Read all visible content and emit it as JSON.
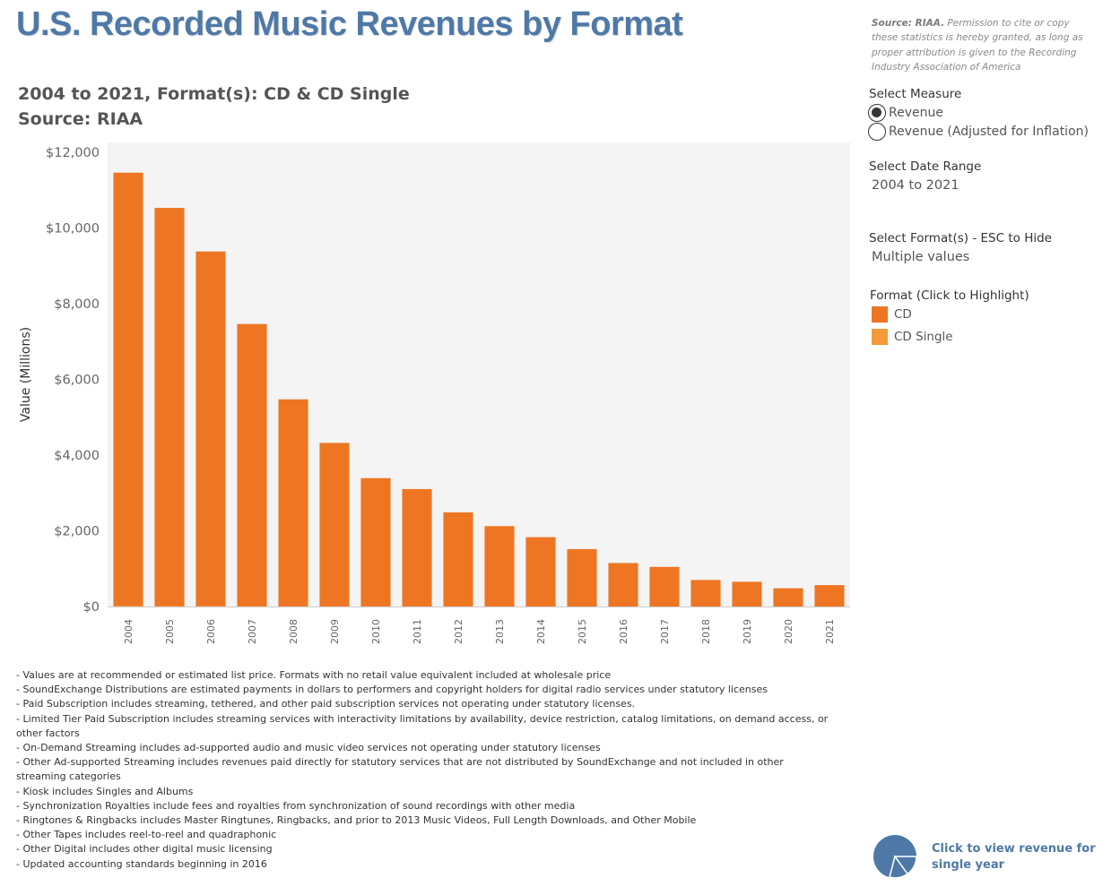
{
  "header": {
    "title": "U.S. Recorded Music Revenues by Format",
    "source_bold": "Source: RIAA.",
    "source_note": " Permission to cite or copy these statistics is hereby granted, as long as proper attribution is given to the Recording Industry Association of America",
    "subtitle_line1": "2004 to 2021, Format(s): CD & CD Single",
    "subtitle_line2": "Source: RIAA"
  },
  "controls": {
    "measure_label": "Select Measure",
    "measure_options": [
      "Revenue",
      "Revenue (Adjusted for Inflation)"
    ],
    "measure_selected": 0,
    "date_range_label": "Select Date Range",
    "date_range_value": "2004 to 2021",
    "format_label": "Select Format(s) - ESC to Hide",
    "format_value": "Multiple values",
    "legend_title": "Format (Click to Highlight)",
    "legend_items": [
      {
        "label": "CD",
        "color": "#ee7623"
      },
      {
        "label": "CD Single",
        "color": "#f59a3a"
      }
    ]
  },
  "chart_data": {
    "type": "bar",
    "categories": [
      "2004",
      "2005",
      "2006",
      "2007",
      "2008",
      "2009",
      "2010",
      "2011",
      "2012",
      "2013",
      "2014",
      "2015",
      "2016",
      "2017",
      "2018",
      "2019",
      "2020",
      "2021"
    ],
    "series": [
      {
        "name": "CD",
        "color": "#ee7623",
        "values": [
          11447,
          10520,
          9373,
          7452,
          5471,
          4319,
          3389,
          3101,
          2486,
          2123,
          1831,
          1517,
          1149,
          1047,
          702,
          655,
          483,
          566
        ]
      },
      {
        "name": "CD Single",
        "color": "#f59a3a",
        "values": [
          15,
          11,
          7,
          12,
          3,
          3,
          3,
          2,
          2,
          1,
          1,
          0,
          0,
          0,
          0,
          0,
          0,
          0
        ]
      }
    ],
    "ylabel": "Value (Millions)",
    "ylim": [
      0,
      12000
    ],
    "yticks": [
      0,
      2000,
      4000,
      6000,
      8000,
      10000,
      12000
    ],
    "ytick_labels": [
      "$0",
      "$2,000",
      "$4,000",
      "$6,000",
      "$8,000",
      "$10,000",
      "$12,000"
    ],
    "grid": false,
    "background": "#f4f4f4"
  },
  "footnotes": [
    "- Values are at recommended or estimated list price. Formats with no retail value equivalent included at wholesale price",
    "- SoundExchange Distributions are estimated payments in dollars to performers and copyright holders for digital radio services under statutory licenses",
    "- Paid Subscription includes streaming, tethered, and other paid subscription services not operating under statutory licenses.",
    "- Limited Tier Paid Subscription includes streaming services with interactivity limitations by availability, device restriction, catalog limitations, on demand access, or other factors",
    "- On-Demand Streaming includes ad-supported audio and music video services not operating under statutory licenses",
    "- Other Ad-supported Streaming includes revenues paid directly for statutory services that are not distributed by SoundExchange and not included in other streaming categories",
    "- Kiosk includes Singles and Albums",
    "- Synchronization Royalties include fees and royalties from synchronization of sound recordings with other media",
    "- Ringtones & Ringbacks includes Master Ringtunes, Ringbacks, and prior to 2013 Music Videos, Full Length Downloads, and Other Mobile",
    "- Other Tapes includes reel-to-reel and quadraphonic",
    "- Other Digital includes other digital music licensing",
    "- Updated accounting standards beginning in 2016"
  ],
  "pie_link": {
    "text": "Click to view revenue for single year",
    "icon": "pie-chart-icon",
    "color": "#4e79a7"
  }
}
